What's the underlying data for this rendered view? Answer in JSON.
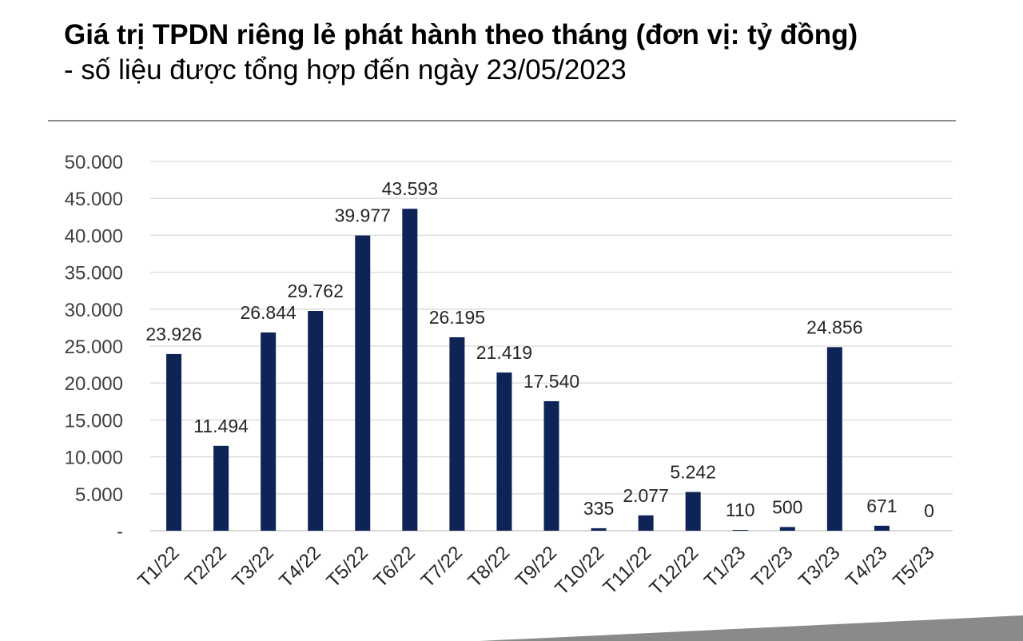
{
  "header": {
    "title": "Giá trị TPDN riêng lẻ phát hành theo tháng (đơn vị: tỷ đồng)",
    "subtitle": "- số liệu được tổng hợp đến ngày 23/05/2023"
  },
  "colors": {
    "bar": "#0e2356",
    "grid": "#d9d9d9",
    "text": "#404040",
    "rule": "#8c8c8c"
  },
  "chart_data": {
    "type": "bar",
    "title": "Giá trị TPDN riêng lẻ phát hành theo tháng (đơn vị: tỷ đồng)",
    "subtitle": "- số liệu được tổng hợp đến ngày 23/05/2023",
    "categories": [
      "T1/22",
      "T2/22",
      "T3/22",
      "T4/22",
      "T5/22",
      "T6/22",
      "T7/22",
      "T8/22",
      "T9/22",
      "T10/22",
      "T11/22",
      "T12/22",
      "T1/23",
      "T2/23",
      "T3/23",
      "T4/23",
      "T5/23"
    ],
    "values": [
      23926,
      11494,
      26844,
      29762,
      39977,
      43593,
      26195,
      21419,
      17540,
      335,
      2077,
      5242,
      110,
      500,
      24856,
      671,
      0
    ],
    "data_labels": [
      "23.926",
      "11.494",
      "26.844",
      "29.762",
      "39.977",
      "43.593",
      "26.195",
      "21.419",
      "17.540",
      "335",
      "2.077",
      "5.242",
      "110",
      "500",
      "24.856",
      "671",
      "0"
    ],
    "y_ticks": [
      0,
      5000,
      10000,
      15000,
      20000,
      25000,
      30000,
      35000,
      40000,
      45000,
      50000
    ],
    "y_tick_labels": [
      "-",
      "5.000",
      "10.000",
      "15.000",
      "20.000",
      "25.000",
      "30.000",
      "35.000",
      "40.000",
      "45.000",
      "50.000"
    ],
    "ylim": [
      0,
      50000
    ],
    "xlabel": "",
    "ylabel": "",
    "grid": true,
    "legend": "none"
  }
}
